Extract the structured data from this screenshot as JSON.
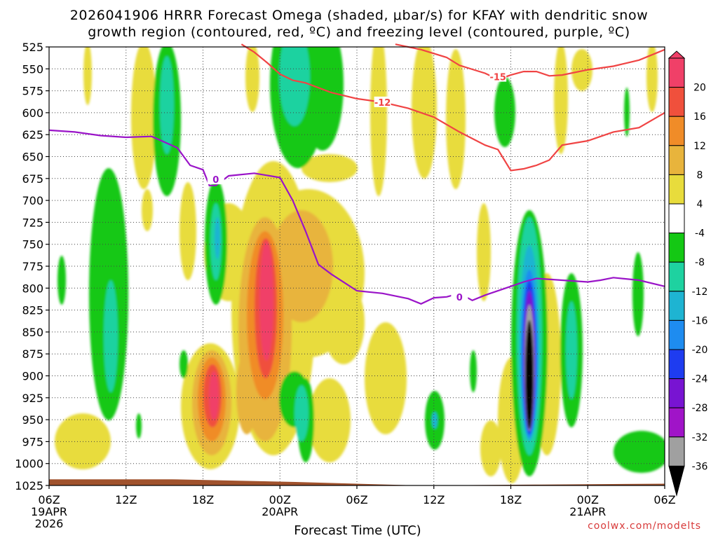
{
  "chart_data": {
    "type": "contour",
    "title_line1": "2026041906 HRRR Forecast Omega (shaded, μbar/s) for KFAY with dendritic snow",
    "title_line2": "growth region (contoured, red, ºC) and freezing level (contoured, purple, ºC)",
    "xlabel": "Forecast Time (UTC)",
    "credit": "coolwx.com/modelts",
    "x_ticks": [
      {
        "hour": 0,
        "label": "06Z",
        "date1": "19APR",
        "date2": "2026"
      },
      {
        "hour": 6,
        "label": "12Z"
      },
      {
        "hour": 12,
        "label": "18Z"
      },
      {
        "hour": 18,
        "label": "00Z",
        "date1": "20APR"
      },
      {
        "hour": 24,
        "label": "06Z"
      },
      {
        "hour": 30,
        "label": "12Z"
      },
      {
        "hour": 36,
        "label": "18Z"
      },
      {
        "hour": 42,
        "label": "00Z",
        "date1": "21APR"
      },
      {
        "hour": 48,
        "label": "06Z"
      }
    ],
    "y_ticks": [
      525,
      550,
      575,
      600,
      625,
      650,
      675,
      700,
      725,
      750,
      775,
      800,
      825,
      850,
      875,
      900,
      925,
      950,
      975,
      1000,
      1025
    ],
    "x_range_hours": [
      0,
      48
    ],
    "y_range_mb": [
      525,
      1025
    ],
    "colorbar": {
      "labels": [
        "20",
        "16",
        "12",
        "8",
        "4",
        "-4",
        "-8",
        "-12",
        "-16",
        "-20",
        "-24",
        "-28",
        "-32",
        "-36"
      ],
      "colors": [
        "#f04068",
        "#f0503c",
        "#f08c28",
        "#e8b43c",
        "#e8dc3c",
        "#ffffff",
        "#14c814",
        "#1ed2a0",
        "#1eb4d2",
        "#1e8cf0",
        "#1e3cf0",
        "#7814d2",
        "#a014c8",
        "#a0a0a0",
        "#000000"
      ]
    },
    "freezing_level": {
      "label": "0",
      "points": [
        [
          0,
          620
        ],
        [
          2,
          622
        ],
        [
          4,
          626
        ],
        [
          6,
          628
        ],
        [
          8,
          627
        ],
        [
          10,
          640
        ],
        [
          11,
          660
        ],
        [
          12,
          665
        ],
        [
          12.5,
          683
        ],
        [
          13,
          683
        ],
        [
          14,
          672
        ],
        [
          16,
          669
        ],
        [
          18,
          674
        ],
        [
          19,
          700
        ],
        [
          20,
          735
        ],
        [
          21,
          773
        ],
        [
          22,
          784
        ],
        [
          24,
          803
        ],
        [
          26,
          806
        ],
        [
          28,
          812
        ],
        [
          29,
          818
        ],
        [
          30,
          811
        ],
        [
          31,
          810
        ],
        [
          32,
          806
        ],
        [
          33,
          814
        ],
        [
          34,
          808
        ],
        [
          36,
          798
        ],
        [
          37,
          793
        ],
        [
          38,
          789
        ],
        [
          40,
          791
        ],
        [
          42,
          793
        ],
        [
          43,
          791
        ],
        [
          44,
          788
        ],
        [
          46,
          791
        ],
        [
          48,
          798
        ]
      ]
    },
    "dgz_bottom_isotherm": {
      "label": "-12",
      "points": [
        [
          15,
          522
        ],
        [
          16,
          531
        ],
        [
          17,
          543
        ],
        [
          18,
          556
        ],
        [
          19,
          563
        ],
        [
          20,
          566
        ],
        [
          22,
          577
        ],
        [
          24,
          584
        ],
        [
          26,
          588
        ],
        [
          28,
          595
        ],
        [
          30,
          605
        ],
        [
          32,
          622
        ],
        [
          34,
          637
        ],
        [
          35,
          642
        ],
        [
          36,
          666
        ],
        [
          37,
          664
        ],
        [
          38,
          660
        ],
        [
          39,
          654
        ],
        [
          40,
          637
        ],
        [
          42,
          632
        ],
        [
          44,
          622
        ],
        [
          46,
          617
        ],
        [
          48,
          600
        ]
      ]
    },
    "dgz_top_isotherm": {
      "label": "-15",
      "points": [
        [
          27,
          522
        ],
        [
          29,
          528
        ],
        [
          31,
          537
        ],
        [
          32,
          546
        ],
        [
          34,
          555
        ],
        [
          35,
          562
        ],
        [
          36,
          557
        ],
        [
          37,
          553
        ],
        [
          38,
          553
        ],
        [
          39,
          558
        ],
        [
          40,
          557
        ],
        [
          42,
          551
        ],
        [
          44,
          547
        ],
        [
          46,
          540
        ],
        [
          48,
          528
        ]
      ]
    },
    "terrain_surface_mb": [
      1018,
      1018,
      1021,
      1025,
      1024,
      1023
    ]
  }
}
